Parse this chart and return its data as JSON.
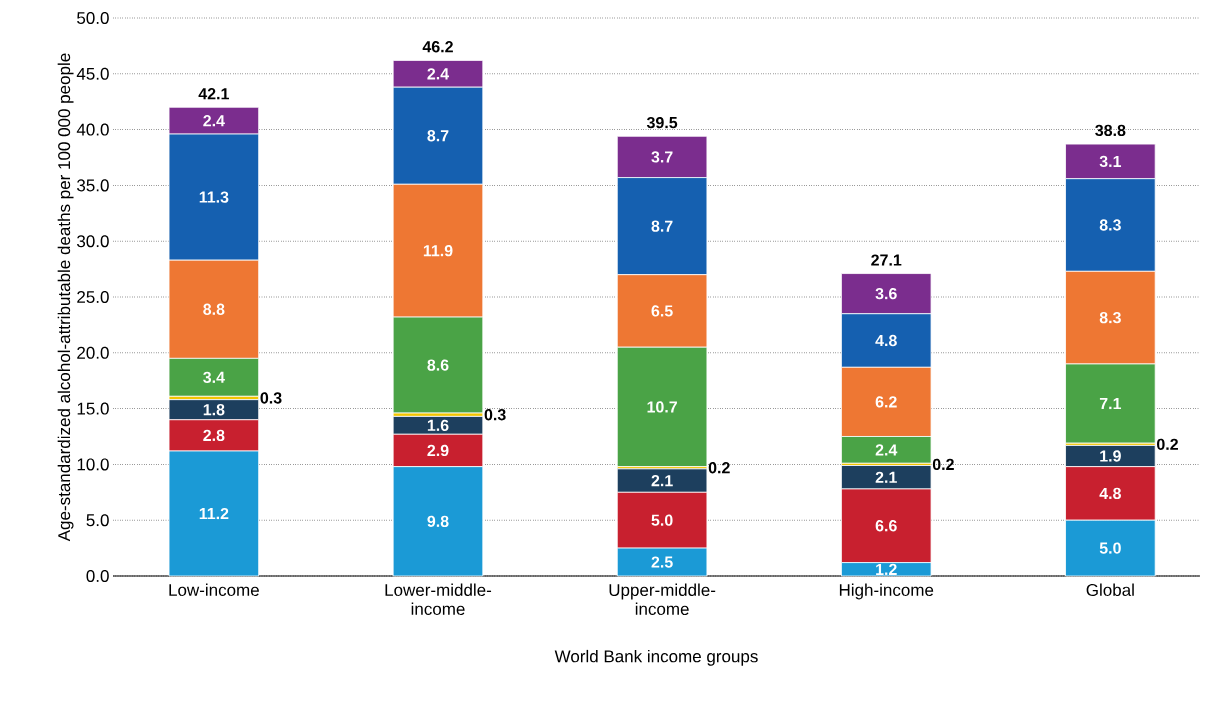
{
  "chart_data": {
    "type": "bar",
    "stacked": true,
    "xlabel": "World Bank income groups",
    "ylabel": "Age-standardized alcohol-attributable deaths per 100 000 people",
    "categories": [
      "Low-income",
      "Lower-middle-income",
      "Upper-middle-income",
      "High-income",
      "Global"
    ],
    "series": [
      {
        "color": "#1b9ad6",
        "values": [
          11.2,
          9.8,
          2.5,
          1.2,
          5.0
        ],
        "value_labels": [
          "11.2",
          "9.8",
          "2.5",
          "1.2",
          "5.0"
        ]
      },
      {
        "color": "#c8202f",
        "values": [
          2.8,
          2.9,
          5.0,
          6.6,
          4.8
        ],
        "value_labels": [
          "2.8",
          "2.9",
          "5.0",
          "6.6",
          "4.8"
        ]
      },
      {
        "color": "#1d3f5e",
        "values": [
          1.8,
          1.6,
          2.1,
          2.1,
          1.9
        ],
        "value_labels": [
          "1.8",
          "1.6",
          "2.1",
          "2.1",
          "1.9"
        ]
      },
      {
        "color": "#f2c500",
        "values": [
          0.3,
          0.3,
          0.2,
          0.2,
          0.2
        ],
        "value_labels": [
          "0.3",
          "0.3",
          "0.2",
          "0.2",
          "0.2"
        ]
      },
      {
        "color": "#4aa346",
        "values": [
          3.4,
          8.6,
          10.7,
          2.4,
          7.1
        ],
        "value_labels": [
          "3.4",
          "8.6",
          "10.7",
          "2.4",
          "7.1"
        ]
      },
      {
        "color": "#ee7733",
        "values": [
          8.8,
          11.9,
          6.5,
          6.2,
          8.3
        ],
        "value_labels": [
          "8.8",
          "11.9",
          "6.5",
          "6.2",
          "8.3"
        ]
      },
      {
        "color": "#1560b0",
        "values": [
          11.3,
          8.7,
          8.7,
          4.8,
          8.3
        ],
        "value_labels": [
          "11.3",
          "8.7",
          "8.7",
          "4.8",
          "8.3"
        ]
      },
      {
        "color": "#7b2d8e",
        "values": [
          2.4,
          2.4,
          3.7,
          3.6,
          3.1
        ],
        "value_labels": [
          "2.4",
          "2.4",
          "3.7",
          "3.6",
          "3.1"
        ]
      }
    ],
    "totals": [
      "42.1",
      "46.2",
      "39.5",
      "27.1",
      "38.8"
    ],
    "ylim": [
      0,
      50
    ],
    "yticks": [
      {
        "value": 0,
        "label": "0.0"
      },
      {
        "value": 5,
        "label": "5.0"
      },
      {
        "value": 10,
        "label": "10.0"
      },
      {
        "value": 15,
        "label": "15.0"
      },
      {
        "value": 20,
        "label": "20.0"
      },
      {
        "value": 25,
        "label": "25.0"
      },
      {
        "value": 30,
        "label": "30.0"
      },
      {
        "value": 35,
        "label": "35.0"
      },
      {
        "value": 40,
        "label": "40.0"
      },
      {
        "value": 45,
        "label": "45.0"
      },
      {
        "value": 50,
        "label": "50.0"
      }
    ],
    "grid": "y"
  }
}
